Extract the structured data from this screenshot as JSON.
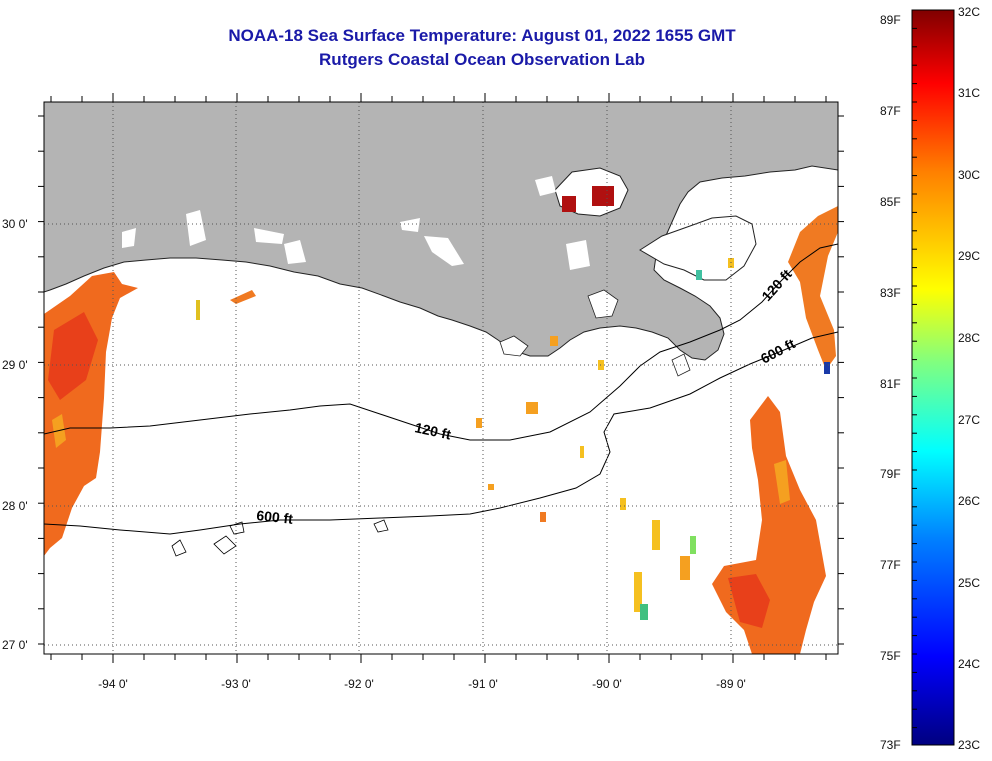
{
  "title": {
    "line1": "NOAA-18 Sea Surface Temperature:  August 01, 2022 1655 GMT",
    "line2": "Rutgers Coastal Ocean Observation Lab"
  },
  "longitude_labels": [
    "-94 0'",
    "-93 0'",
    "-92 0'",
    "-91 0'",
    "-90 0'",
    "-89 0'"
  ],
  "latitude_labels": [
    "30 0'",
    "29 0'",
    "28 0'",
    "27 0'"
  ],
  "contour_labels": [
    "120 ft",
    "600 ft",
    "120 ft",
    "600 ft"
  ],
  "colorbar": {
    "fahrenheit_labels": [
      "89F",
      "87F",
      "85F",
      "83F",
      "81F",
      "79F",
      "77F",
      "75F",
      "73F"
    ],
    "celsius_labels": [
      "32C",
      "31C",
      "30C",
      "29C",
      "28C",
      "27C",
      "26C",
      "25C",
      "24C",
      "23C"
    ],
    "gradient_colors": [
      "#000080",
      "#0000ff",
      "#0080ff",
      "#00ffff",
      "#80ff80",
      "#ffff00",
      "#ff8000",
      "#ff0000",
      "#800000"
    ]
  },
  "colors": {
    "land": "#b4b4b4",
    "title": "#1a1aa8",
    "warm_sst": "#f06a1e",
    "hot_sst": "#b01010"
  }
}
